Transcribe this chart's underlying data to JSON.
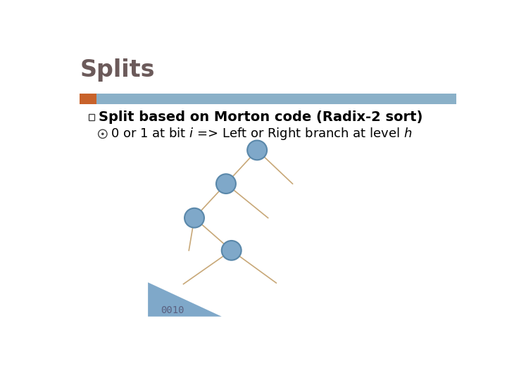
{
  "title": "Splits",
  "title_color": "#6b5a5a",
  "header_bar_color": "#8ab0c8",
  "header_accent_color": "#c8622a",
  "bg_color": "#ffffff",
  "bullet1": "Split based on Morton code (Radix-2 sort)",
  "bullet2_pre": "0 or 1 at bit ",
  "bullet2_i": "i",
  "bullet2_mid": " => Left or Right branch at level ",
  "bullet2_h": "h",
  "node_fill": "#7fa8c9",
  "node_edge": "#5a88aa",
  "triangle_color": "#7fa8c9",
  "triangle_text": "0010",
  "triangle_text_color": "#5a6080",
  "branch_color": "#c8a878"
}
